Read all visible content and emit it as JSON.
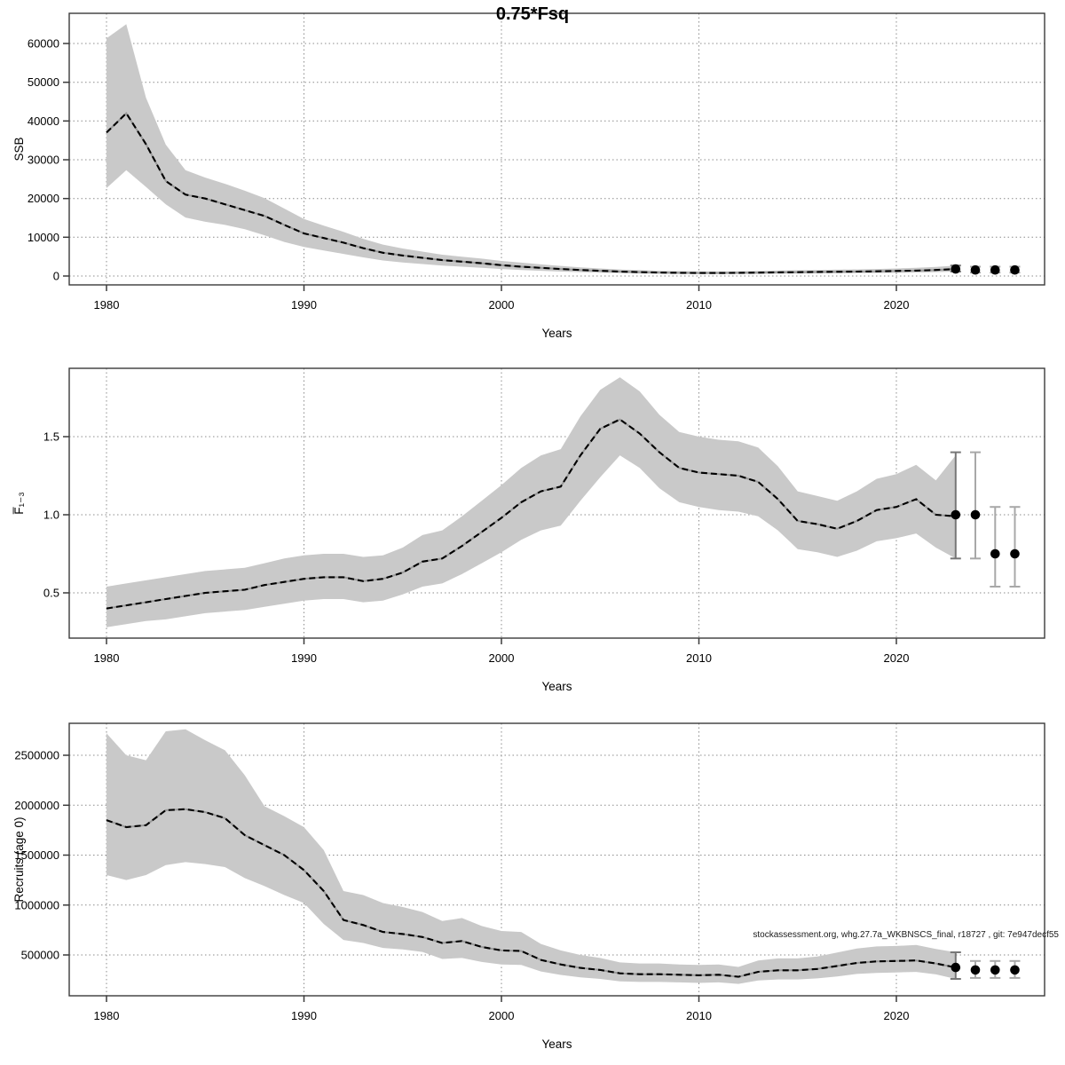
{
  "title": "0.75*Fsq",
  "annotation": "stockassessment.org, whg.27.7a_WKBNSCS_final, r18727 , git: 7e947decf55",
  "colors": {
    "band": "#c9c9c9",
    "median_line": "#000000",
    "median_underlay": "#9a9a9a",
    "grid": "#8c8c8c",
    "frame": "#3a3a3a",
    "errorbar": "#a8a8a8",
    "errorbar_first": "#777777",
    "dot": "#000000",
    "background": "#ffffff"
  },
  "chart_data": [
    {
      "type": "line",
      "panel": "ssb",
      "title": "0.75*Fsq",
      "xlabel": "Years",
      "ylabel": "SSB",
      "xticks": [
        1980,
        1990,
        2000,
        2010,
        2020
      ],
      "xtick_labels": [
        "1980",
        "1990",
        "2000",
        "2010",
        "2020"
      ],
      "yticks": [
        0,
        10000,
        20000,
        30000,
        40000,
        50000,
        60000
      ],
      "ytick_labels": [
        "0",
        "10000",
        "20000",
        "30000",
        "40000",
        "50000",
        "60000"
      ],
      "xlim": [
        1978.1,
        2027.5
      ],
      "ylim": [
        -2300,
        67800
      ],
      "grid": true,
      "legend": null,
      "x": [
        1980,
        1981,
        1982,
        1983,
        1984,
        1985,
        1986,
        1987,
        1988,
        1989,
        1990,
        1991,
        1992,
        1993,
        1994,
        1995,
        1996,
        1997,
        1998,
        1999,
        2000,
        2001,
        2002,
        2003,
        2004,
        2005,
        2006,
        2007,
        2008,
        2009,
        2010,
        2011,
        2012,
        2013,
        2014,
        2015,
        2016,
        2017,
        2018,
        2019,
        2020,
        2021,
        2022,
        2023
      ],
      "series": [
        {
          "name": "estimate",
          "values": [
            37000,
            42000,
            34000,
            24500,
            21000,
            20000,
            18500,
            17000,
            15500,
            13200,
            11000,
            9800,
            8600,
            7200,
            6000,
            5300,
            4700,
            4100,
            3700,
            3300,
            2800,
            2400,
            2100,
            1800,
            1550,
            1350,
            1150,
            1000,
            900,
            830,
            780,
            790,
            820,
            870,
            930,
            990,
            1050,
            1100,
            1150,
            1220,
            1300,
            1400,
            1550,
            1800
          ]
        },
        {
          "name": "lower95",
          "values": [
            22700,
            27300,
            23000,
            18500,
            15100,
            14000,
            13200,
            12100,
            10500,
            8800,
            7500,
            6600,
            5700,
            4800,
            4000,
            3500,
            3100,
            2700,
            2400,
            2100,
            1800,
            1550,
            1350,
            1150,
            1000,
            870,
            740,
            640,
            580,
            530,
            500,
            505,
            525,
            555,
            595,
            635,
            670,
            705,
            735,
            780,
            830,
            900,
            1000,
            1150
          ]
        },
        {
          "name": "upper95",
          "values": [
            61300,
            65000,
            46000,
            33900,
            27300,
            25400,
            23800,
            22000,
            20100,
            17400,
            14700,
            13000,
            11400,
            9600,
            8100,
            7100,
            6300,
            5500,
            5000,
            4500,
            3900,
            3450,
            3000,
            2600,
            2250,
            1950,
            1700,
            1500,
            1350,
            1250,
            1180,
            1190,
            1230,
            1300,
            1390,
            1480,
            1560,
            1640,
            1720,
            1820,
            1940,
            2100,
            2350,
            2700
          ]
        }
      ],
      "forecast": {
        "years": [
          2023,
          2024,
          2025,
          2026
        ],
        "est": [
          1800,
          1550,
          1550,
          1550
        ],
        "lo": [
          1150,
          900,
          900,
          900
        ],
        "hi": [
          2700,
          2400,
          2400,
          2400
        ]
      }
    },
    {
      "type": "line",
      "panel": "fbar",
      "title": "",
      "xlabel": "Years",
      "ylabel": "F̅₁₋₃",
      "xticks": [
        1980,
        1990,
        2000,
        2010,
        2020
      ],
      "xtick_labels": [
        "1980",
        "1990",
        "2000",
        "2010",
        "2020"
      ],
      "yticks": [
        0.5,
        1.0,
        1.5
      ],
      "ytick_labels": [
        "0.5",
        "1.0",
        "1.5"
      ],
      "xlim": [
        1978.1,
        2027.5
      ],
      "ylim": [
        0.21,
        1.94
      ],
      "grid": true,
      "legend": null,
      "x": [
        1980,
        1981,
        1982,
        1983,
        1984,
        1985,
        1986,
        1987,
        1988,
        1989,
        1990,
        1991,
        1992,
        1993,
        1994,
        1995,
        1996,
        1997,
        1998,
        1999,
        2000,
        2001,
        2002,
        2003,
        2004,
        2005,
        2006,
        2007,
        2008,
        2009,
        2010,
        2011,
        2012,
        2013,
        2014,
        2015,
        2016,
        2017,
        2018,
        2019,
        2020,
        2021,
        2022,
        2023
      ],
      "series": [
        {
          "name": "estimate",
          "values": [
            0.4,
            0.42,
            0.44,
            0.46,
            0.48,
            0.5,
            0.51,
            0.52,
            0.55,
            0.57,
            0.59,
            0.6,
            0.6,
            0.575,
            0.59,
            0.63,
            0.7,
            0.72,
            0.8,
            0.89,
            0.98,
            1.08,
            1.15,
            1.18,
            1.38,
            1.55,
            1.61,
            1.52,
            1.4,
            1.3,
            1.27,
            1.26,
            1.25,
            1.21,
            1.1,
            0.96,
            0.94,
            0.91,
            0.96,
            1.03,
            1.05,
            1.1,
            1.0,
            0.99
          ]
        },
        {
          "name": "lower95",
          "values": [
            0.28,
            0.3,
            0.32,
            0.33,
            0.35,
            0.37,
            0.38,
            0.39,
            0.41,
            0.43,
            0.45,
            0.46,
            0.46,
            0.44,
            0.45,
            0.49,
            0.54,
            0.56,
            0.62,
            0.69,
            0.76,
            0.84,
            0.9,
            0.93,
            1.09,
            1.24,
            1.38,
            1.3,
            1.17,
            1.08,
            1.05,
            1.03,
            1.02,
            0.99,
            0.9,
            0.78,
            0.76,
            0.73,
            0.77,
            0.83,
            0.85,
            0.88,
            0.79,
            0.72
          ]
        },
        {
          "name": "upper95",
          "values": [
            0.54,
            0.56,
            0.58,
            0.6,
            0.62,
            0.64,
            0.65,
            0.66,
            0.69,
            0.72,
            0.74,
            0.75,
            0.75,
            0.73,
            0.74,
            0.79,
            0.87,
            0.9,
            0.99,
            1.09,
            1.19,
            1.3,
            1.38,
            1.42,
            1.63,
            1.8,
            1.88,
            1.79,
            1.64,
            1.53,
            1.5,
            1.48,
            1.47,
            1.43,
            1.31,
            1.15,
            1.12,
            1.09,
            1.15,
            1.23,
            1.26,
            1.32,
            1.22,
            1.38
          ]
        }
      ],
      "forecast": {
        "years": [
          2023,
          2024,
          2025,
          2026
        ],
        "est": [
          1.0,
          1.0,
          0.75,
          0.75
        ],
        "lo": [
          0.72,
          0.72,
          0.54,
          0.54
        ],
        "hi": [
          1.4,
          1.4,
          1.05,
          1.05
        ]
      }
    },
    {
      "type": "line",
      "panel": "recruitment",
      "title": "",
      "xlabel": "Years",
      "ylabel": "Recruits (age 0)",
      "xticks": [
        1980,
        1990,
        2000,
        2010,
        2020
      ],
      "xtick_labels": [
        "1980",
        "1990",
        "2000",
        "2010",
        "2020"
      ],
      "yticks": [
        500000,
        1000000,
        1500000,
        2000000,
        2500000
      ],
      "ytick_labels": [
        "500000",
        "1000000",
        "1500000",
        "2000000",
        "2500000"
      ],
      "xlim": [
        1978.1,
        2027.5
      ],
      "ylim": [
        40000,
        2820000
      ],
      "grid": true,
      "legend": null,
      "x": [
        1980,
        1981,
        1982,
        1983,
        1984,
        1985,
        1986,
        1987,
        1988,
        1989,
        1990,
        1991,
        1992,
        1993,
        1994,
        1995,
        1996,
        1997,
        1998,
        1999,
        2000,
        2001,
        2002,
        2003,
        2004,
        2005,
        2006,
        2007,
        2008,
        2009,
        2010,
        2011,
        2012,
        2013,
        2014,
        2015,
        2016,
        2017,
        2018,
        2019,
        2020,
        2021,
        2022,
        2023
      ],
      "series": [
        {
          "name": "estimate",
          "values": [
            1850000,
            1780000,
            1800000,
            1950000,
            1960000,
            1930000,
            1870000,
            1700000,
            1600000,
            1500000,
            1350000,
            1140000,
            850000,
            800000,
            730000,
            710000,
            680000,
            620000,
            640000,
            580000,
            545000,
            540000,
            450000,
            405000,
            370000,
            350000,
            316000,
            307000,
            307000,
            302000,
            296000,
            302000,
            281000,
            331000,
            346000,
            346000,
            360000,
            390000,
            420000,
            435000,
            440000,
            445000,
            415000,
            375000
          ]
        },
        {
          "name": "lower95",
          "values": [
            1300000,
            1250000,
            1300000,
            1400000,
            1430000,
            1410000,
            1380000,
            1270000,
            1190000,
            1100000,
            1020000,
            810000,
            650000,
            620000,
            570000,
            555000,
            530000,
            460000,
            470000,
            430000,
            405000,
            400000,
            335000,
            300000,
            275000,
            260000,
            235000,
            230000,
            230000,
            225000,
            220000,
            225000,
            210000,
            245000,
            255000,
            255000,
            265000,
            285000,
            310000,
            320000,
            325000,
            330000,
            305000,
            260000
          ]
        },
        {
          "name": "upper95",
          "values": [
            2720000,
            2500000,
            2450000,
            2740000,
            2760000,
            2650000,
            2550000,
            2300000,
            1990000,
            1890000,
            1780000,
            1550000,
            1140000,
            1100000,
            1020000,
            980000,
            930000,
            840000,
            870000,
            790000,
            740000,
            730000,
            610000,
            545000,
            500000,
            470000,
            425000,
            415000,
            415000,
            405000,
            400000,
            405000,
            380000,
            445000,
            465000,
            465000,
            485000,
            525000,
            565000,
            585000,
            590000,
            600000,
            560000,
            527000
          ]
        }
      ],
      "forecast": {
        "years": [
          2023,
          2024,
          2025,
          2026
        ],
        "est": [
          375000,
          350000,
          350000,
          350000
        ],
        "lo": [
          260000,
          270000,
          270000,
          270000
        ],
        "hi": [
          527000,
          440000,
          440000,
          440000
        ]
      }
    }
  ]
}
